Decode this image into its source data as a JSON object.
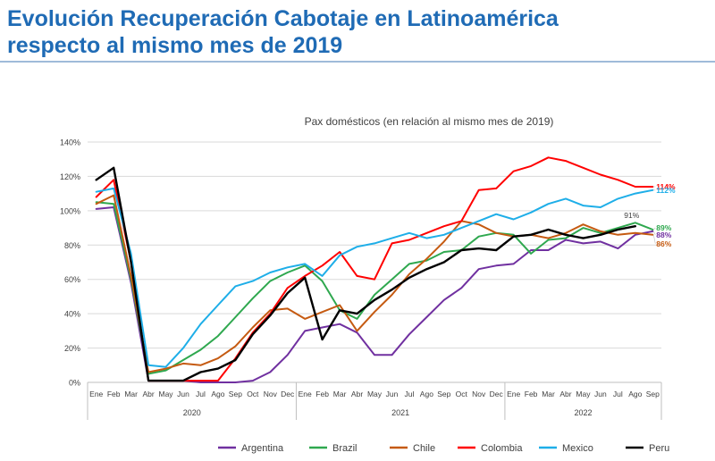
{
  "slide": {
    "title_line1": "Evolución Recuperación Cabotaje en Latinoamérica",
    "title_line2": "respecto al mismo mes de 2019"
  },
  "chart_data": {
    "type": "line",
    "title": "Pax domésticos (en relación al mismo mes de 2019)",
    "xlabel": "",
    "ylabel": "",
    "ylim": [
      0,
      140
    ],
    "yticks": [
      "0%",
      "20%",
      "40%",
      "60%",
      "80%",
      "100%",
      "120%",
      "140%"
    ],
    "grid": "horizontal",
    "legend": "bottom",
    "categories": [
      "Ene",
      "Feb",
      "Mar",
      "Abr",
      "May",
      "Jun",
      "Jul",
      "Ago",
      "Sep",
      "Oct",
      "Nov",
      "Dec",
      "Ene",
      "Feb",
      "Mar",
      "Abr",
      "May",
      "Jun",
      "Jul",
      "Ago",
      "Sep",
      "Oct",
      "Nov",
      "Dec",
      "Ene",
      "Feb",
      "Mar",
      "Abr",
      "May",
      "Jun",
      "Jul",
      "Ago",
      "Sep"
    ],
    "year_groups": [
      {
        "label": "2020",
        "start": 0,
        "end": 11
      },
      {
        "label": "2021",
        "start": 12,
        "end": 23
      },
      {
        "label": "2022",
        "start": 24,
        "end": 32
      }
    ],
    "series": [
      {
        "name": "Argentina",
        "color": "#7030a0",
        "values": [
          101,
          102,
          58,
          1,
          1,
          1,
          0,
          0,
          0,
          1,
          6,
          16,
          30,
          32,
          34,
          29,
          16,
          16,
          28,
          38,
          48,
          55,
          66,
          68,
          69,
          77,
          77,
          83,
          81,
          82,
          78,
          86,
          88
        ],
        "end_label": "88%"
      },
      {
        "name": "Brazil",
        "color": "#2fa84f",
        "values": [
          105,
          104,
          60,
          5,
          7,
          13,
          19,
          27,
          38,
          49,
          59,
          64,
          68,
          59,
          42,
          37,
          51,
          60,
          69,
          71,
          76,
          77,
          85,
          87,
          86,
          75,
          83,
          84,
          90,
          87,
          90,
          93,
          89
        ],
        "end_label": "89%"
      },
      {
        "name": "Chile",
        "color": "#c55a11",
        "values": [
          104,
          109,
          62,
          6,
          8,
          11,
          10,
          14,
          21,
          32,
          42,
          43,
          37,
          41,
          45,
          30,
          41,
          51,
          63,
          72,
          82,
          94,
          92,
          87,
          85,
          86,
          84,
          87,
          92,
          88,
          86,
          87,
          86
        ],
        "end_label": "86%"
      },
      {
        "name": "Colombia",
        "color": "#ff0000",
        "values": [
          108,
          118,
          70,
          1,
          1,
          1,
          1,
          1,
          14,
          29,
          40,
          55,
          62,
          68,
          76,
          62,
          60,
          81,
          83,
          87,
          91,
          94,
          112,
          113,
          123,
          126,
          131,
          129,
          125,
          121,
          118,
          114,
          114
        ],
        "end_label": "114%"
      },
      {
        "name": "Mexico",
        "color": "#1eaee8",
        "values": [
          111,
          113,
          75,
          10,
          9,
          20,
          34,
          45,
          56,
          59,
          64,
          67,
          69,
          62,
          74,
          79,
          81,
          84,
          87,
          84,
          86,
          90,
          94,
          98,
          95,
          99,
          104,
          107,
          103,
          102,
          107,
          110,
          112
        ],
        "end_label": "112%"
      },
      {
        "name": "Peru",
        "color": "#000000",
        "values": [
          118,
          125,
          70,
          1,
          1,
          1,
          6,
          8,
          13,
          28,
          39,
          52,
          61,
          25,
          42,
          40,
          48,
          54,
          61,
          66,
          70,
          77,
          78,
          77,
          85,
          86,
          89,
          86,
          84,
          86,
          89,
          91,
          null
        ],
        "end_label": "91%"
      }
    ]
  }
}
